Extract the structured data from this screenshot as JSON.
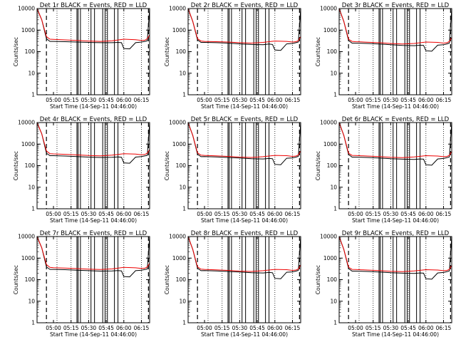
{
  "figure": {
    "colors": {
      "events": "#000000",
      "lld": "#ee0000",
      "background": "#ffffff"
    }
  },
  "chart_data": [
    {
      "type": "line",
      "title": "Det 1r BLACK = Events, RED = LLD",
      "xlabel": "Start Time (14-Sep-11 04:46:00)",
      "ylabel": "Counts/sec",
      "yscale": "log",
      "ylim": [
        1,
        10000
      ],
      "x_ticks": [
        "05:00",
        "05:15",
        "05:30",
        "05:45",
        "06:00",
        "06:15"
      ],
      "y_ticks": [
        "1",
        "10",
        "100",
        "1000",
        "10000"
      ],
      "grid": false,
      "series": [
        {
          "name": "Events",
          "color": "#000000",
          "x": [
            "04:46",
            "04:50",
            "04:54",
            "04:57",
            "05:00",
            "05:10",
            "05:20",
            "05:30",
            "05:40",
            "05:50",
            "05:55",
            "05:58",
            "06:00",
            "06:05",
            "06:10",
            "06:15",
            "06:18",
            "06:20",
            "06:22"
          ],
          "y": [
            10000,
            3000,
            400,
            300,
            300,
            290,
            280,
            270,
            260,
            260,
            270,
            260,
            140,
            135,
            260,
            280,
            300,
            320,
            10000
          ]
        },
        {
          "name": "LLD",
          "color": "#ee0000",
          "x": [
            "04:46",
            "04:50",
            "04:54",
            "04:57",
            "05:00",
            "05:10",
            "05:20",
            "05:30",
            "05:40",
            "05:50",
            "06:00",
            "06:10",
            "06:15",
            "06:18",
            "06:20",
            "06:22"
          ],
          "y": [
            10000,
            3000,
            500,
            380,
            370,
            350,
            330,
            310,
            300,
            320,
            380,
            360,
            330,
            340,
            400,
            600
          ]
        }
      ]
    },
    {
      "type": "line",
      "title": "Det 2r BLACK = Events, RED = LLD",
      "xlabel": "Start Time (14-Sep-11 04:46:00)",
      "ylabel": "Counts/sec",
      "yscale": "log",
      "ylim": [
        1,
        10000
      ],
      "x_ticks": [
        "05:00",
        "05:15",
        "05:30",
        "05:45",
        "06:00",
        "06:15"
      ],
      "y_ticks": [
        "1",
        "10",
        "100",
        "1000",
        "10000"
      ],
      "grid": false,
      "series": [
        {
          "name": "Events",
          "color": "#000000",
          "x": [
            "04:46",
            "04:50",
            "04:54",
            "04:57",
            "05:00",
            "05:10",
            "05:20",
            "05:30",
            "05:40",
            "05:50",
            "05:55",
            "05:58",
            "06:00",
            "06:05",
            "06:10",
            "06:15",
            "06:18",
            "06:20",
            "06:22"
          ],
          "y": [
            10000,
            2500,
            350,
            270,
            270,
            260,
            250,
            230,
            215,
            210,
            225,
            215,
            120,
            115,
            230,
            240,
            260,
            280,
            10000
          ]
        },
        {
          "name": "LLD",
          "color": "#ee0000",
          "x": [
            "04:46",
            "04:50",
            "04:54",
            "04:57",
            "05:00",
            "05:10",
            "05:20",
            "05:30",
            "05:40",
            "05:50",
            "06:00",
            "06:10",
            "06:15",
            "06:18",
            "06:20",
            "06:22"
          ],
          "y": [
            10000,
            2500,
            400,
            310,
            300,
            290,
            280,
            260,
            250,
            270,
            310,
            300,
            280,
            290,
            320,
            500
          ]
        }
      ]
    },
    {
      "type": "line",
      "title": "Det 3r BLACK = Events, RED = LLD",
      "xlabel": "Start Time (14-Sep-11 04:46:00)",
      "ylabel": "Counts/sec",
      "yscale": "log",
      "ylim": [
        1,
        10000
      ],
      "x_ticks": [
        "05:00",
        "05:15",
        "05:30",
        "05:45",
        "06:00",
        "06:15"
      ],
      "y_ticks": [
        "1",
        "10",
        "100",
        "1000",
        "10000"
      ],
      "grid": false,
      "series": [
        {
          "name": "Events",
          "color": "#000000",
          "x": [
            "04:46",
            "04:50",
            "04:54",
            "04:57",
            "05:00",
            "05:10",
            "05:20",
            "05:30",
            "05:40",
            "05:50",
            "05:55",
            "05:58",
            "06:00",
            "06:05",
            "06:10",
            "06:15",
            "06:18",
            "06:20",
            "06:22"
          ],
          "y": [
            10000,
            2500,
            330,
            250,
            250,
            240,
            225,
            210,
            195,
            190,
            200,
            195,
            110,
            105,
            200,
            210,
            230,
            250,
            10000
          ]
        },
        {
          "name": "LLD",
          "color": "#ee0000",
          "x": [
            "04:46",
            "04:50",
            "04:54",
            "04:57",
            "05:00",
            "05:10",
            "05:20",
            "05:30",
            "05:40",
            "05:50",
            "06:00",
            "06:10",
            "06:15",
            "06:18",
            "06:20",
            "06:22"
          ],
          "y": [
            10000,
            2500,
            380,
            300,
            290,
            275,
            260,
            240,
            225,
            240,
            280,
            270,
            250,
            260,
            300,
            450
          ]
        }
      ]
    },
    {
      "type": "line",
      "title": "Det 4r BLACK = Events, RED = LLD",
      "xlabel": "Start Time (14-Sep-11 04:46:00)",
      "ylabel": "Counts/sec",
      "yscale": "log",
      "ylim": [
        1,
        10000
      ],
      "x_ticks": [
        "05:00",
        "05:15",
        "05:30",
        "05:45",
        "06:00",
        "06:15"
      ],
      "y_ticks": [
        "1",
        "10",
        "100",
        "1000",
        "10000"
      ],
      "grid": false,
      "series": [
        {
          "name": "Events",
          "color": "#000000",
          "x": [
            "04:46",
            "04:50",
            "04:54",
            "04:57",
            "05:00",
            "05:10",
            "05:20",
            "05:30",
            "05:40",
            "05:50",
            "05:55",
            "05:58",
            "06:00",
            "06:05",
            "06:10",
            "06:15",
            "06:18",
            "06:20",
            "06:22"
          ],
          "y": [
            10000,
            3000,
            380,
            290,
            290,
            280,
            265,
            250,
            240,
            245,
            255,
            245,
            135,
            130,
            250,
            265,
            285,
            300,
            10000
          ]
        },
        {
          "name": "LLD",
          "color": "#ee0000",
          "x": [
            "04:46",
            "04:50",
            "04:54",
            "04:57",
            "05:00",
            "05:10",
            "05:20",
            "05:30",
            "05:40",
            "05:50",
            "06:00",
            "06:10",
            "06:15",
            "06:18",
            "06:20",
            "06:22"
          ],
          "y": [
            10000,
            3000,
            480,
            360,
            350,
            335,
            315,
            295,
            285,
            305,
            360,
            345,
            320,
            330,
            380,
            560
          ]
        }
      ]
    },
    {
      "type": "line",
      "title": "Det 5r BLACK = Events, RED = LLD",
      "xlabel": "Start Time (14-Sep-11 04:46:00)",
      "ylabel": "Counts/sec",
      "yscale": "log",
      "ylim": [
        1,
        10000
      ],
      "x_ticks": [
        "05:00",
        "05:15",
        "05:30",
        "05:45",
        "06:00",
        "06:15"
      ],
      "y_ticks": [
        "1",
        "10",
        "100",
        "1000",
        "10000"
      ],
      "grid": false,
      "series": [
        {
          "name": "Events",
          "color": "#000000",
          "x": [
            "04:46",
            "04:50",
            "04:54",
            "04:57",
            "05:00",
            "05:10",
            "05:20",
            "05:30",
            "05:40",
            "05:50",
            "05:55",
            "05:58",
            "06:00",
            "06:05",
            "06:10",
            "06:15",
            "06:18",
            "06:20",
            "06:22"
          ],
          "y": [
            10000,
            2500,
            340,
            260,
            265,
            255,
            240,
            225,
            210,
            205,
            215,
            210,
            115,
            110,
            220,
            230,
            250,
            270,
            10000
          ]
        },
        {
          "name": "LLD",
          "color": "#ee0000",
          "x": [
            "04:46",
            "04:50",
            "04:54",
            "04:57",
            "05:00",
            "05:10",
            "05:20",
            "05:30",
            "05:40",
            "05:50",
            "06:00",
            "06:10",
            "06:15",
            "06:18",
            "06:20",
            "06:22"
          ],
          "y": [
            10000,
            2500,
            390,
            305,
            300,
            285,
            270,
            250,
            240,
            260,
            300,
            290,
            270,
            280,
            310,
            480
          ]
        }
      ]
    },
    {
      "type": "line",
      "title": "Det 6r BLACK = Events, RED = LLD",
      "xlabel": "Start Time (14-Sep-11 04:46:00)",
      "ylabel": "Counts/sec",
      "yscale": "log",
      "ylim": [
        1,
        10000
      ],
      "x_ticks": [
        "05:00",
        "05:15",
        "05:30",
        "05:45",
        "06:00",
        "06:15"
      ],
      "y_ticks": [
        "1",
        "10",
        "100",
        "1000",
        "10000"
      ],
      "grid": false,
      "series": [
        {
          "name": "Events",
          "color": "#000000",
          "x": [
            "04:46",
            "04:50",
            "04:54",
            "04:57",
            "05:00",
            "05:10",
            "05:20",
            "05:30",
            "05:40",
            "05:50",
            "05:55",
            "05:58",
            "06:00",
            "06:05",
            "06:10",
            "06:15",
            "06:18",
            "06:20",
            "06:22"
          ],
          "y": [
            10000,
            2500,
            330,
            250,
            250,
            240,
            225,
            210,
            200,
            195,
            205,
            200,
            110,
            105,
            205,
            215,
            235,
            255,
            10000
          ]
        },
        {
          "name": "LLD",
          "color": "#ee0000",
          "x": [
            "04:46",
            "04:50",
            "04:54",
            "04:57",
            "05:00",
            "05:10",
            "05:20",
            "05:30",
            "05:40",
            "05:50",
            "06:00",
            "06:10",
            "06:15",
            "06:18",
            "06:20",
            "06:22"
          ],
          "y": [
            10000,
            2500,
            380,
            300,
            295,
            280,
            265,
            245,
            235,
            255,
            290,
            280,
            260,
            270,
            300,
            460
          ]
        }
      ]
    },
    {
      "type": "line",
      "title": "Det 7r BLACK = Events, RED = LLD",
      "xlabel": "Start Time (14-Sep-11 04:46:00)",
      "ylabel": "Counts/sec",
      "yscale": "log",
      "ylim": [
        1,
        10000
      ],
      "x_ticks": [
        "05:00",
        "05:15",
        "05:30",
        "05:45",
        "06:00",
        "06:15"
      ],
      "y_ticks": [
        "1",
        "10",
        "100",
        "1000",
        "10000"
      ],
      "grid": false,
      "series": [
        {
          "name": "Events",
          "color": "#000000",
          "x": [
            "04:46",
            "04:50",
            "04:54",
            "04:57",
            "05:00",
            "05:10",
            "05:20",
            "05:30",
            "05:40",
            "05:50",
            "05:55",
            "05:58",
            "06:00",
            "06:05",
            "06:10",
            "06:15",
            "06:18",
            "06:20",
            "06:22"
          ],
          "y": [
            10000,
            3000,
            390,
            300,
            300,
            290,
            275,
            260,
            250,
            255,
            265,
            255,
            140,
            135,
            260,
            275,
            295,
            310,
            10000
          ]
        },
        {
          "name": "LLD",
          "color": "#ee0000",
          "x": [
            "04:46",
            "04:50",
            "04:54",
            "04:57",
            "05:00",
            "05:10",
            "05:20",
            "05:30",
            "05:40",
            "05:50",
            "06:00",
            "06:10",
            "06:15",
            "06:18",
            "06:20",
            "06:22"
          ],
          "y": [
            10000,
            3000,
            500,
            370,
            360,
            345,
            325,
            305,
            295,
            315,
            370,
            355,
            330,
            340,
            390,
            580
          ]
        }
      ]
    },
    {
      "type": "line",
      "title": "Det 8r BLACK = Events, RED = LLD",
      "xlabel": "Start Time (14-Sep-11 04:46:00)",
      "ylabel": "Counts/sec",
      "yscale": "log",
      "ylim": [
        1,
        10000
      ],
      "x_ticks": [
        "05:00",
        "05:15",
        "05:30",
        "05:45",
        "06:00",
        "06:15"
      ],
      "y_ticks": [
        "1",
        "10",
        "100",
        "1000",
        "10000"
      ],
      "grid": false,
      "series": [
        {
          "name": "Events",
          "color": "#000000",
          "x": [
            "04:46",
            "04:50",
            "04:54",
            "04:57",
            "05:00",
            "05:10",
            "05:20",
            "05:30",
            "05:40",
            "05:50",
            "05:55",
            "05:58",
            "06:00",
            "06:05",
            "06:10",
            "06:15",
            "06:18",
            "06:20",
            "06:22"
          ],
          "y": [
            10000,
            2500,
            340,
            260,
            265,
            255,
            240,
            225,
            210,
            205,
            215,
            210,
            115,
            110,
            220,
            230,
            250,
            270,
            10000
          ]
        },
        {
          "name": "LLD",
          "color": "#ee0000",
          "x": [
            "04:46",
            "04:50",
            "04:54",
            "04:57",
            "05:00",
            "05:10",
            "05:20",
            "05:30",
            "05:40",
            "05:50",
            "06:00",
            "06:10",
            "06:15",
            "06:18",
            "06:20",
            "06:22"
          ],
          "y": [
            10000,
            2500,
            390,
            305,
            300,
            285,
            270,
            250,
            240,
            260,
            300,
            290,
            270,
            280,
            310,
            480
          ]
        }
      ]
    },
    {
      "type": "line",
      "title": "Det 9r BLACK = Events, RED = LLD",
      "xlabel": "Start Time (14-Sep-11 04:46:00)",
      "ylabel": "Counts/sec",
      "yscale": "log",
      "ylim": [
        1,
        10000
      ],
      "x_ticks": [
        "05:00",
        "05:15",
        "05:30",
        "05:45",
        "06:00",
        "06:15"
      ],
      "y_ticks": [
        "1",
        "10",
        "100",
        "1000",
        "10000"
      ],
      "grid": false,
      "series": [
        {
          "name": "Events",
          "color": "#000000",
          "x": [
            "04:46",
            "04:50",
            "04:54",
            "04:57",
            "05:00",
            "05:10",
            "05:20",
            "05:30",
            "05:40",
            "05:50",
            "05:55",
            "05:58",
            "06:00",
            "06:05",
            "06:10",
            "06:15",
            "06:18",
            "06:20",
            "06:22"
          ],
          "y": [
            10000,
            2500,
            330,
            250,
            250,
            240,
            225,
            210,
            200,
            195,
            205,
            200,
            110,
            105,
            205,
            215,
            235,
            255,
            10000
          ]
        },
        {
          "name": "LLD",
          "color": "#ee0000",
          "x": [
            "04:46",
            "04:50",
            "04:54",
            "04:57",
            "05:00",
            "05:10",
            "05:20",
            "05:30",
            "05:40",
            "05:50",
            "06:00",
            "06:10",
            "06:15",
            "06:18",
            "06:20",
            "06:22"
          ],
          "y": [
            10000,
            2500,
            380,
            300,
            295,
            280,
            265,
            245,
            235,
            255,
            290,
            280,
            260,
            270,
            300,
            460
          ]
        }
      ]
    }
  ]
}
